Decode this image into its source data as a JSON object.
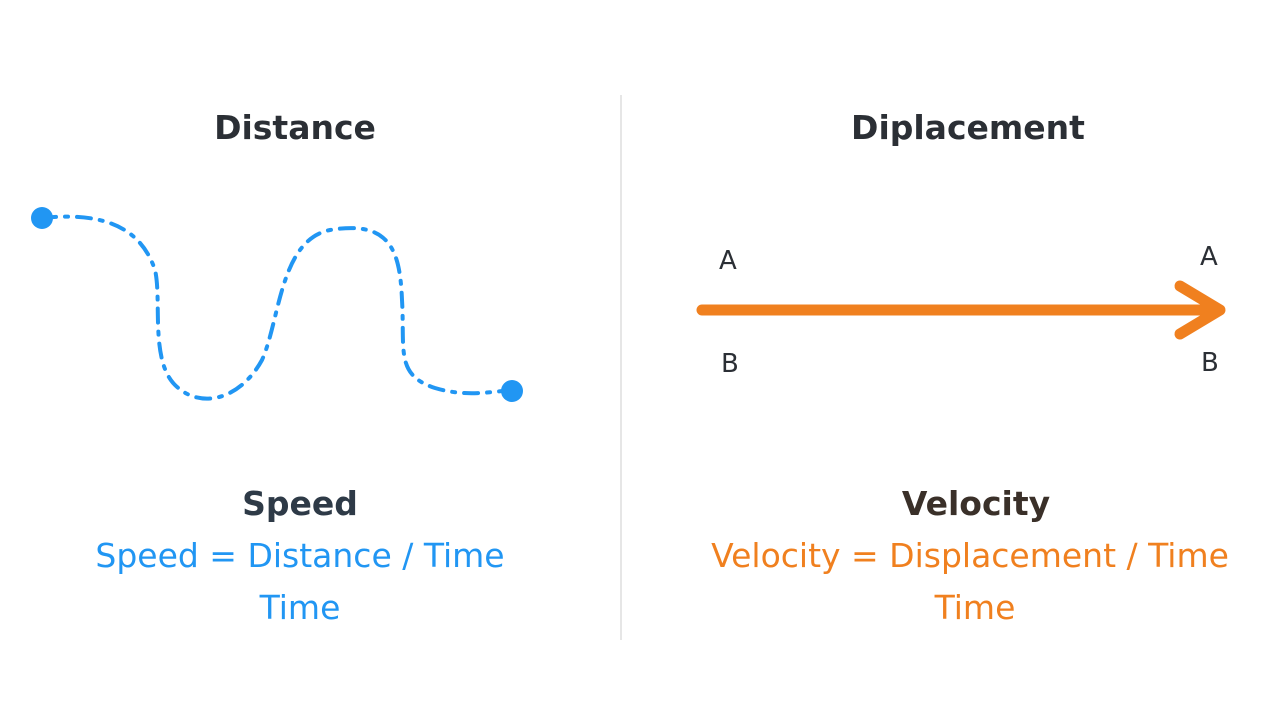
{
  "left": {
    "title": "Distance",
    "concept": "Speed",
    "formula": "Speed = Distance / Time",
    "denominator": "Time",
    "color": "#2196f3"
  },
  "right": {
    "title": "Diplacement",
    "concept": "Velocity",
    "formula": "Velocity = Displacement / Time",
    "denominator": "Time",
    "color": "#f0801f",
    "start_top_label": "A",
    "start_bottom_label": "B",
    "end_top_label": "A",
    "end_bottom_label": "B"
  }
}
